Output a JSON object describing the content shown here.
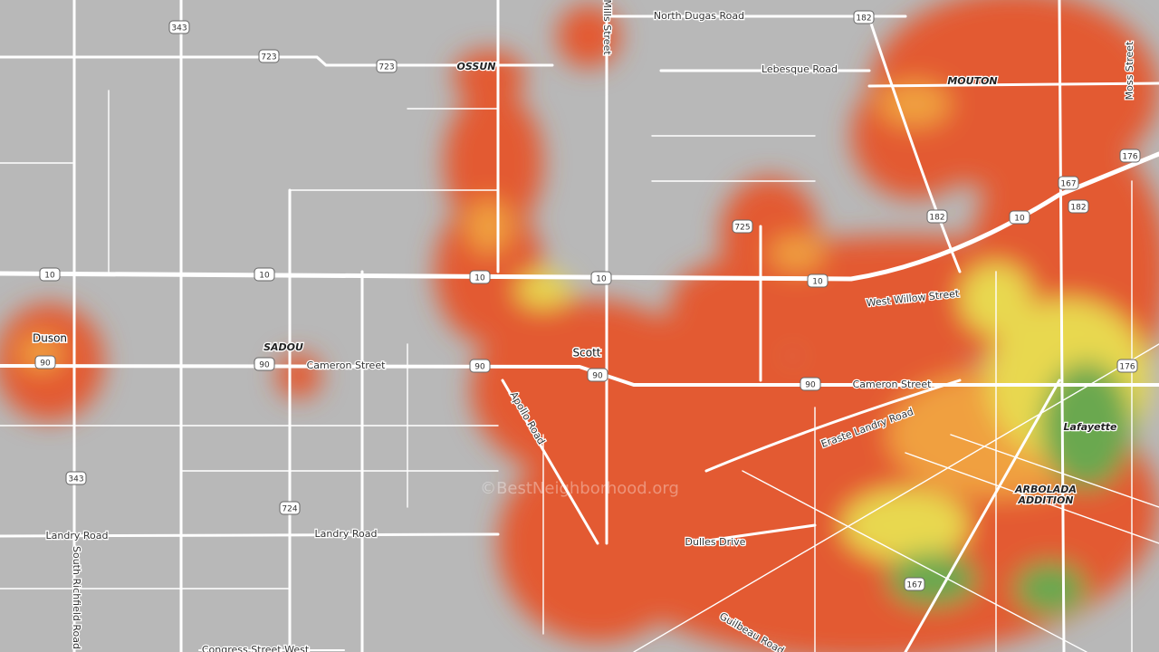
{
  "map": {
    "place_labels": [
      "OSSUN",
      "Duson",
      "SADOU",
      "Scott",
      "Lafayette",
      "ARBOLADA",
      "ADDITION",
      "MOUTON"
    ],
    "road_labels": [
      "North Dugas Road",
      "Mills Street",
      "Lebesque Road",
      "Moss Street",
      "West Willow Street",
      "Cameron Street",
      "Cameron Street",
      "Apollo Road",
      "Eraste Landry Road",
      "Landry Road",
      "Landry Road",
      "South Richfield Road",
      "Dulles Drive",
      "Guilbeau Road",
      "Congress Street West"
    ],
    "shields": [
      "343",
      "343",
      "723",
      "723",
      "182",
      "182",
      "182",
      "10",
      "10",
      "10",
      "10",
      "10",
      "10",
      "725",
      "90",
      "90",
      "90",
      "90",
      "90",
      "167",
      "167",
      "176",
      "176",
      "724"
    ],
    "watermark": "©BestNeighborhood.org"
  }
}
